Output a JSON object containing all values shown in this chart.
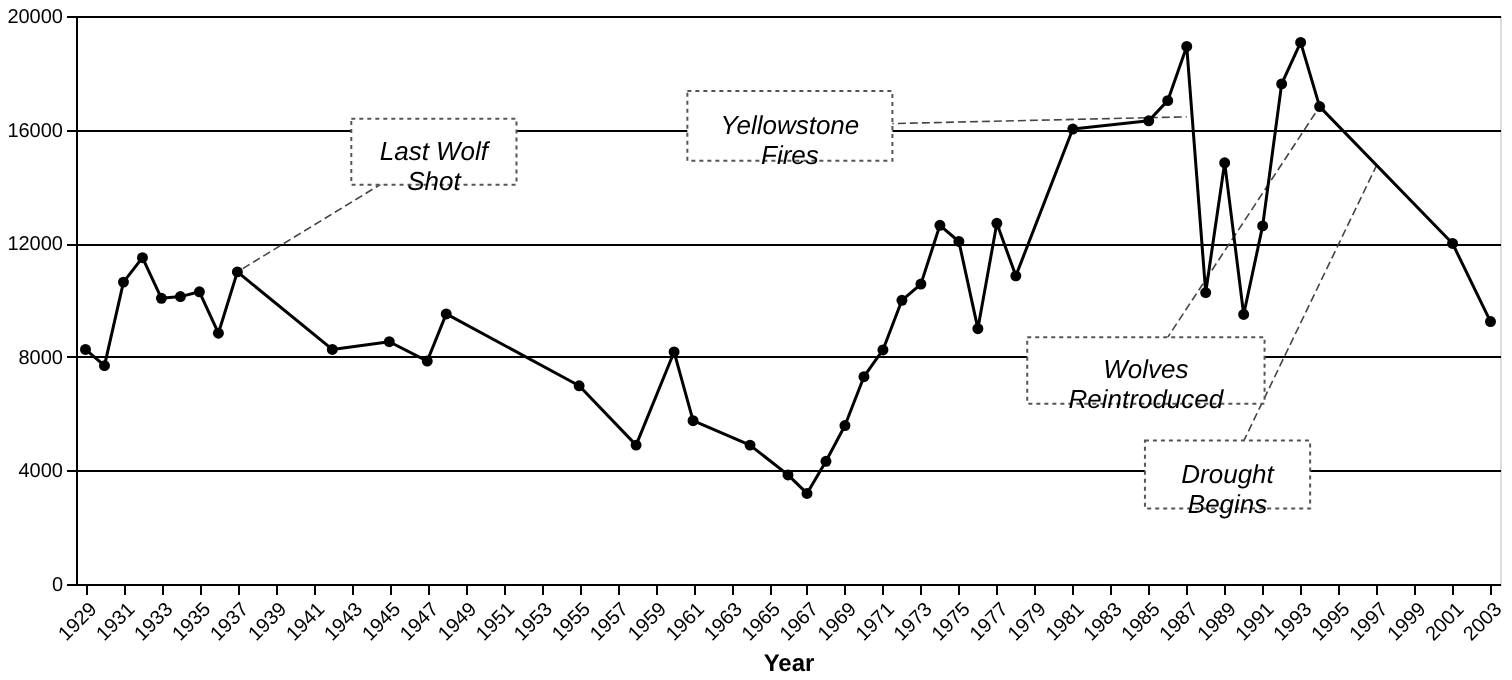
{
  "chart_data": {
    "type": "line",
    "xlabel": "Year",
    "x": [
      1929,
      1930,
      1931,
      1932,
      1933,
      1934,
      1935,
      1936,
      1937,
      1942,
      1945,
      1947,
      1948,
      1955,
      1958,
      1960,
      1961,
      1964,
      1966,
      1967,
      1968,
      1969,
      1970,
      1971,
      1972,
      1973,
      1974,
      1975,
      1976,
      1977,
      1978,
      1981,
      1985,
      1986,
      1987,
      1988,
      1989,
      1990,
      1991,
      1992,
      1993,
      1994,
      2001,
      2003
    ],
    "series": [
      {
        "color": "#000000",
        "values": [
          8260,
          7690,
          10630,
          11490,
          10060,
          10120,
          10290,
          8830,
          10990,
          8260,
          8530,
          7850,
          9510,
          6980,
          4890,
          8170,
          5750,
          4890,
          3840,
          3190,
          4320,
          5580,
          7300,
          8240,
          9990,
          10560,
          12630,
          12060,
          8990,
          12700,
          10850,
          16020,
          16310,
          17020,
          18930,
          10260,
          14830,
          9490,
          12610,
          17610,
          19070,
          16810,
          11990,
          9240
        ]
      }
    ],
    "xlim": [
      1928.5,
      2003.5
    ],
    "xticks": [
      1929,
      1931,
      1933,
      1935,
      1937,
      1939,
      1941,
      1943,
      1945,
      1947,
      1949,
      1951,
      1953,
      1955,
      1957,
      1959,
      1961,
      1963,
      1965,
      1967,
      1969,
      1971,
      1973,
      1975,
      1977,
      1979,
      1981,
      1983,
      1985,
      1987,
      1989,
      1991,
      1993,
      1995,
      1997,
      1999,
      2001,
      2003
    ],
    "ylim": [
      0,
      20000
    ],
    "yticks": [
      0,
      4000,
      8000,
      12000,
      16000,
      20000
    ],
    "grid": "y",
    "marker": "circle",
    "line_style": "solid",
    "legend": false,
    "annotations": [
      {
        "text": "Last Wolf Shot",
        "x": 1937,
        "y": 10990
      },
      {
        "text": "Yellowstone Fires",
        "x": 1987,
        "y": 16450
      },
      {
        "text": "Wolves Reintroduced",
        "x": 1994,
        "y": 16810
      },
      {
        "text": "Drought Begins",
        "x": 1997,
        "y": 14740
      }
    ]
  }
}
